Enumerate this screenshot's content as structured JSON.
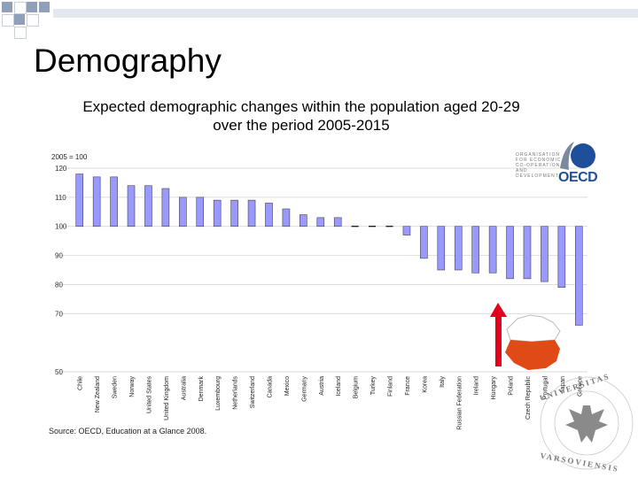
{
  "slide": {
    "title": "Demography",
    "subtitle_line1": "Expected demographic changes within the population aged 20-29",
    "subtitle_line2": "over the period 2005-2015",
    "source": "Source: OECD, Education at a Glance 2008.",
    "oecd_line1": "ORGANISATION",
    "oecd_line2": "FOR ECONOMIC",
    "oecd_line3": "CO-OPERATION",
    "oecd_line4": "AND DEVELOPMENT",
    "oecd_word": "OECD",
    "accent_color": "#90a0b8",
    "bar_color": "#9999ff",
    "arrow_color": "#e3001b"
  },
  "chart_data": {
    "type": "bar",
    "title": "2005 = 100",
    "xlabel": "",
    "ylabel": "",
    "ylim": [
      50,
      120
    ],
    "yticks": [
      50,
      70,
      80,
      90,
      100,
      110,
      120
    ],
    "ytick_labels": [
      "50",
      "70",
      "80",
      "90",
      "100",
      "110",
      "120"
    ],
    "categories": [
      "Chile",
      "New Zealand",
      "Sweden",
      "Norway",
      "United States",
      "United Kingdom",
      "Australia",
      "Denmark",
      "Luxembourg",
      "Netherlands",
      "Switzerland",
      "Canada",
      "Mexico",
      "Germany",
      "Austria",
      "Iceland",
      "Belgium",
      "Turkey",
      "Finland",
      "France",
      "Korea",
      "Italy",
      "Russian Federation",
      "Ireland",
      "Hungary",
      "Poland",
      "Czech Republic",
      "Portugal",
      "Japan",
      "Greece"
    ],
    "values": [
      118,
      117,
      117,
      114,
      114,
      113,
      110,
      110,
      109,
      109,
      109,
      108,
      106,
      104,
      103,
      103,
      100,
      100,
      100,
      97,
      89,
      85,
      85,
      84,
      84,
      82,
      82,
      81,
      79,
      66
    ],
    "highlight": "Poland"
  }
}
